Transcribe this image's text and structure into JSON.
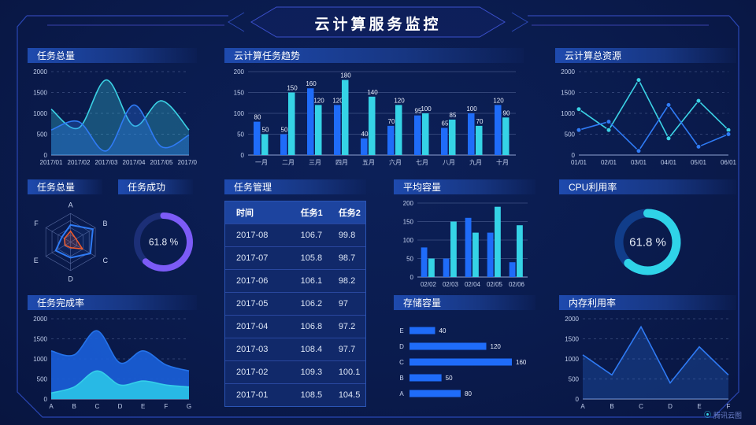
{
  "title": "云计算服务监控",
  "watermark": "腾讯云图",
  "panels": {
    "task_total": {
      "title": "任务总量"
    },
    "task_trend": {
      "title": "云计算任务趋势"
    },
    "cloud_resources": {
      "title": "云计算总资源"
    },
    "task_radar": {
      "title": "任务总量"
    },
    "task_success": {
      "title": "任务成功"
    },
    "task_table": {
      "title": "任务管理"
    },
    "avg_capacity": {
      "title": "平均容量"
    },
    "cpu_usage": {
      "title": "CPU利用率"
    },
    "completion": {
      "title": "任务完成率"
    },
    "storage": {
      "title": "存储容量"
    },
    "memory": {
      "title": "内存利用率"
    }
  },
  "chart_data": [
    {
      "id": "task_total_area",
      "type": "area",
      "title": "任务总量",
      "categories": [
        "2017/01",
        "2017/02",
        "2017/03",
        "2017/04",
        "2017/05",
        "2017/06"
      ],
      "ylim": [
        0,
        2000
      ],
      "yticks": [
        0,
        500,
        1000,
        1500,
        2000
      ],
      "smooth": true,
      "grid": "dashed",
      "series": [
        {
          "color": "#3bd2e5",
          "fill_opacity": 0.3,
          "values": [
            1100,
            650,
            1800,
            700,
            1300,
            600
          ]
        },
        {
          "color": "#2f7bf5",
          "fill_opacity": 0.3,
          "values": [
            600,
            800,
            100,
            1200,
            200,
            480
          ]
        }
      ]
    },
    {
      "id": "task_trend_bars",
      "type": "bar",
      "title": "云计算任务趋势",
      "categories": [
        "一月",
        "二月",
        "三月",
        "四月",
        "五月",
        "六月",
        "七月",
        "八月",
        "九月",
        "十月"
      ],
      "ylim": [
        0,
        200
      ],
      "yticks": [
        0,
        50,
        100,
        150,
        200
      ],
      "value_labels": true,
      "grid": "solid",
      "series": [
        {
          "color": "#1f6cf9",
          "values": [
            80,
            50,
            160,
            120,
            40,
            70,
            95,
            65,
            100,
            120
          ]
        },
        {
          "color": "#35d3e6",
          "values": [
            50,
            150,
            120,
            180,
            140,
            120,
            100,
            85,
            70,
            90
          ]
        }
      ]
    },
    {
      "id": "cloud_resources_line",
      "type": "line",
      "title": "云计算总资源",
      "categories": [
        "01/01",
        "02/01",
        "03/01",
        "04/01",
        "05/01",
        "06/01"
      ],
      "ylim": [
        0,
        2000
      ],
      "yticks": [
        0,
        500,
        1000,
        1500,
        2000
      ],
      "markers": true,
      "grid": "dashed",
      "series": [
        {
          "color": "#3bd2e5",
          "values": [
            1100,
            600,
            1800,
            400,
            1300,
            600
          ]
        },
        {
          "color": "#2f7bf5",
          "values": [
            600,
            800,
            100,
            1200,
            200,
            500
          ]
        }
      ]
    },
    {
      "id": "task_radar",
      "type": "radar",
      "title": "任务总量",
      "axes": [
        "A",
        "B",
        "C",
        "D",
        "E",
        "F"
      ],
      "max": 100,
      "series": [
        {
          "color": "#2f7bf5",
          "values": [
            60,
            90,
            80,
            55,
            60,
            35
          ]
        },
        {
          "color": "#f25b2b",
          "values": [
            38,
            22,
            48,
            20,
            22,
            25
          ]
        }
      ]
    },
    {
      "id": "task_success_gauge",
      "type": "gauge",
      "title": "任务成功",
      "value": 61.8,
      "label": "61.8 %",
      "color": "#7c5bf6",
      "track": "#1c2f77",
      "stroke": 8,
      "label_size": 12
    },
    {
      "id": "task_table",
      "type": "table",
      "title": "任务管理",
      "columns": [
        "时间",
        "任务1",
        "任务2"
      ],
      "rows": [
        [
          "2017-08",
          "106.7",
          "99.8"
        ],
        [
          "2017-07",
          "105.8",
          "98.7"
        ],
        [
          "2017-06",
          "106.1",
          "98.2"
        ],
        [
          "2017-05",
          "106.2",
          "97"
        ],
        [
          "2017-04",
          "106.8",
          "97.2"
        ],
        [
          "2017-03",
          "108.4",
          "97.7"
        ],
        [
          "2017-02",
          "109.3",
          "100.1"
        ],
        [
          "2017-01",
          "108.5",
          "104.5"
        ]
      ]
    },
    {
      "id": "avg_capacity_bars",
      "type": "bar",
      "title": "平均容量",
      "categories": [
        "02/02",
        "02/03",
        "02/04",
        "02/05",
        "02/06"
      ],
      "ylim": [
        0,
        200
      ],
      "yticks": [
        0,
        50,
        100,
        150,
        200
      ],
      "value_labels": false,
      "grid": "solid",
      "series": [
        {
          "color": "#1f6cf9",
          "values": [
            80,
            50,
            160,
            120,
            40
          ]
        },
        {
          "color": "#35d3e6",
          "values": [
            50,
            150,
            120,
            190,
            140
          ]
        }
      ]
    },
    {
      "id": "cpu_gauge",
      "type": "gauge",
      "title": "CPU利用率",
      "value": 61.8,
      "label": "61.8 %",
      "color": "#2fd3e8",
      "track": "#113d8a",
      "stroke": 11,
      "label_size": 15
    },
    {
      "id": "completion_area",
      "type": "area",
      "title": "任务完成率",
      "categories": [
        "A",
        "B",
        "C",
        "D",
        "E",
        "F",
        "G"
      ],
      "ylim": [
        0,
        2000
      ],
      "yticks": [
        0,
        500,
        1000,
        1500,
        2000
      ],
      "smooth": true,
      "grid": "dashed",
      "series": [
        {
          "color": "#2573ea",
          "fill": "#1a5ed8",
          "fill_opacity": 0.92,
          "values": [
            1200,
            1100,
            1700,
            900,
            1200,
            850,
            700
          ]
        },
        {
          "color": "#35cfe9",
          "fill": "#29bfe6",
          "fill_opacity": 0.95,
          "values": [
            150,
            300,
            700,
            350,
            450,
            350,
            300
          ]
        }
      ]
    },
    {
      "id": "storage_hbar",
      "type": "hbar",
      "title": "存储容量",
      "categories": [
        "E",
        "D",
        "C",
        "B",
        "A"
      ],
      "values": [
        40,
        120,
        160,
        50,
        80
      ],
      "color": "#1f6cf9"
    },
    {
      "id": "memory_line",
      "type": "line",
      "title": "内存利用率",
      "categories": [
        "A",
        "B",
        "C",
        "D",
        "E",
        "F"
      ],
      "ylim": [
        0,
        2000
      ],
      "yticks": [
        0,
        500,
        1000,
        1500,
        2000
      ],
      "markers": false,
      "area": true,
      "grid": "dashed",
      "series": [
        {
          "color": "#2f7bf5",
          "fill_opacity": 0.25,
          "values": [
            1100,
            600,
            1800,
            400,
            1300,
            600
          ]
        }
      ]
    }
  ]
}
